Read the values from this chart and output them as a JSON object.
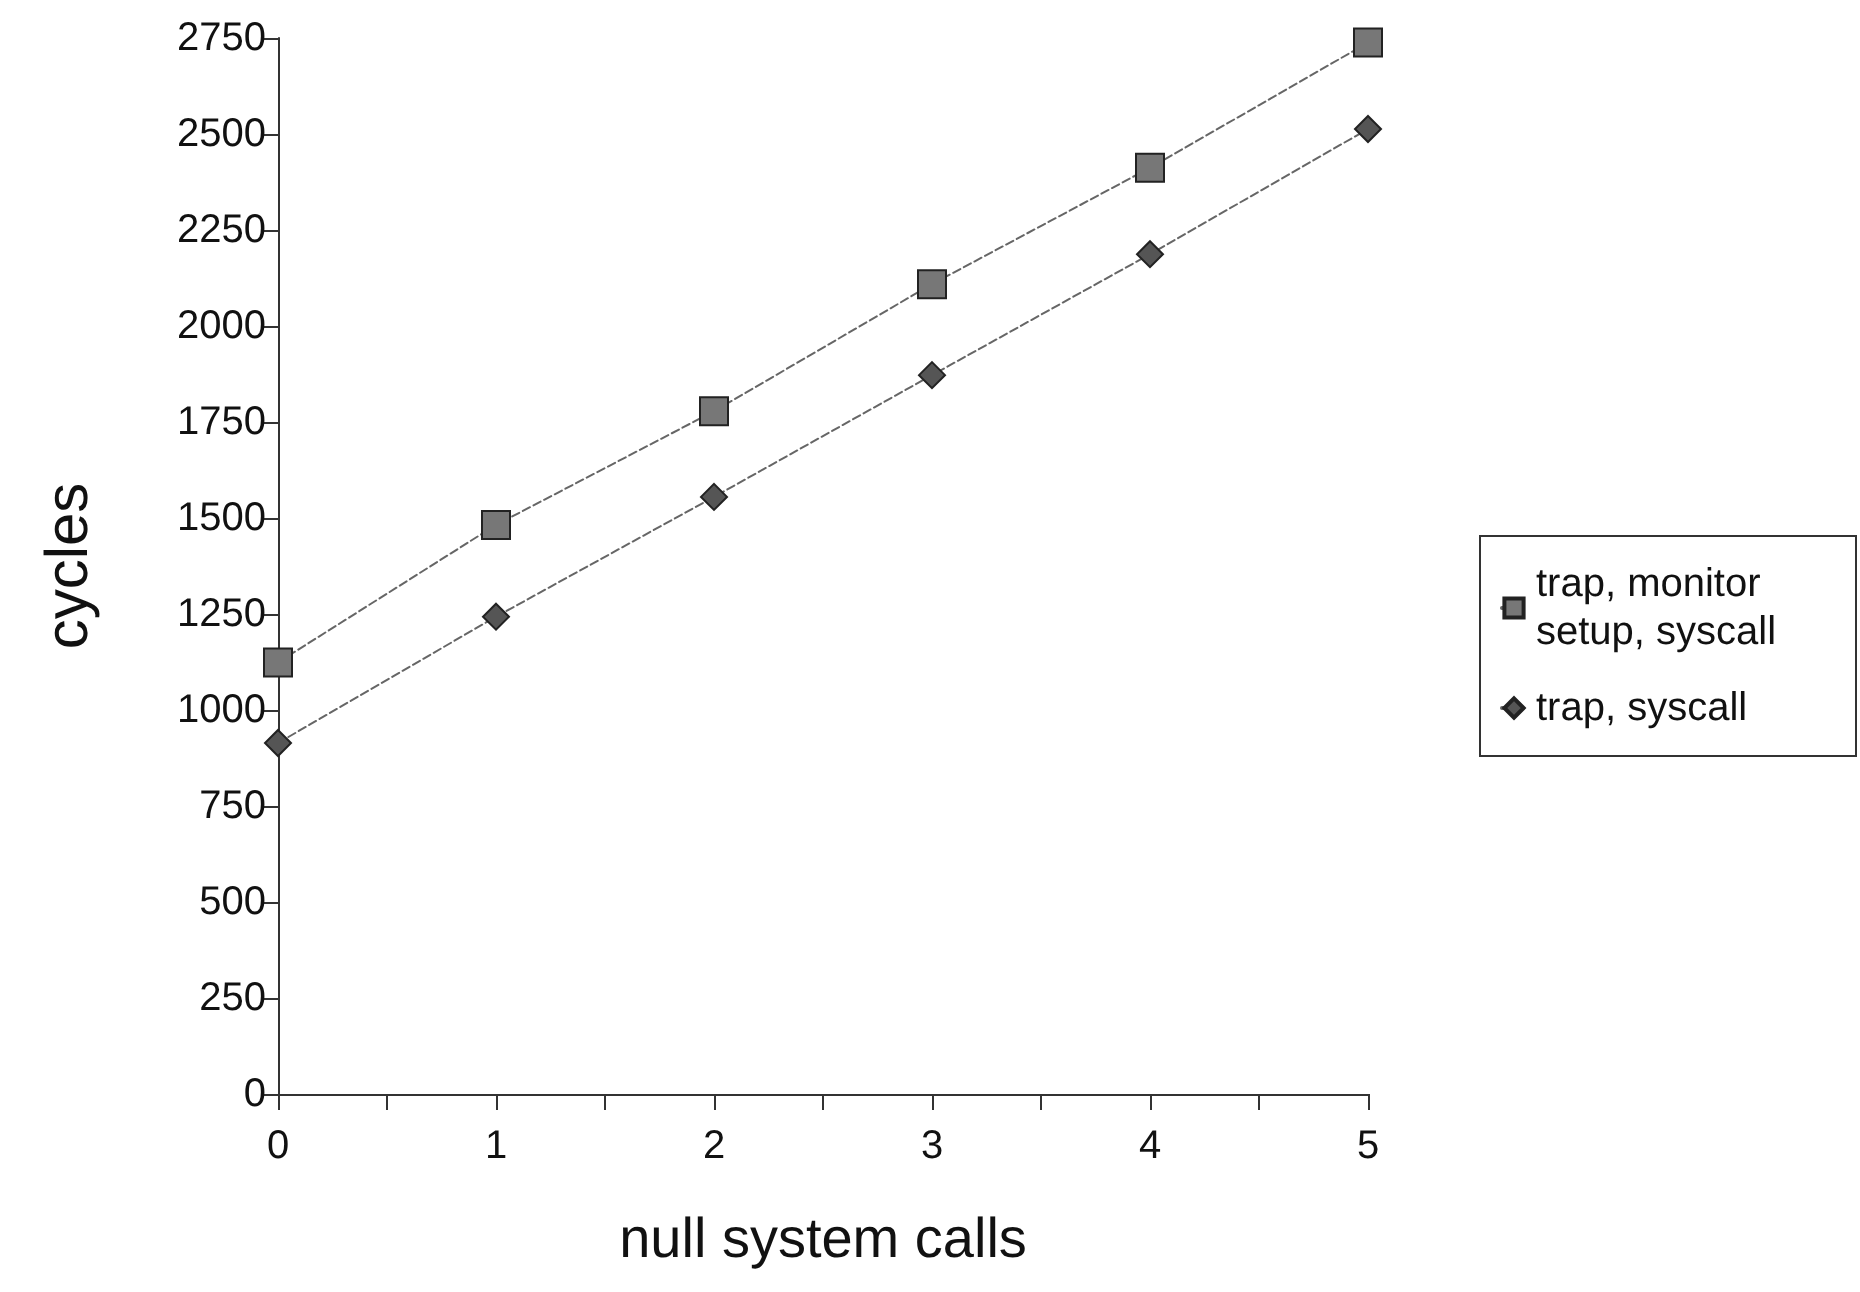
{
  "chart_data": {
    "type": "line",
    "xlabel": "null system calls",
    "ylabel": "cycles",
    "x": [
      0,
      1,
      2,
      3,
      4,
      5
    ],
    "series": [
      {
        "name": "trap, monitor setup, syscall",
        "color": "#777777",
        "marker": "square",
        "values": [
          1124,
          1482,
          1778,
          2109,
          2412,
          2738
        ]
      },
      {
        "name": "trap, syscall",
        "color": "#555555",
        "marker": "diamond",
        "values": [
          914,
          1243,
          1555,
          1872,
          2187,
          2513
        ]
      }
    ],
    "xlim": [
      0,
      5
    ],
    "xticks": [
      0,
      {
        "value": 0.5,
        "label": null
      },
      1,
      {
        "value": 1.5,
        "label": null
      },
      2,
      {
        "value": 2.5,
        "label": null
      },
      3,
      {
        "value": 3.5,
        "label": null
      },
      4,
      {
        "value": 4.5,
        "label": null
      },
      5
    ],
    "ylim": [
      0,
      2750
    ],
    "yticks": [
      0,
      250,
      500,
      750,
      1000,
      1250,
      1500,
      1750,
      2000,
      2250,
      2500,
      2750
    ],
    "grid": false,
    "legend": "right",
    "line_style": "dashed"
  }
}
